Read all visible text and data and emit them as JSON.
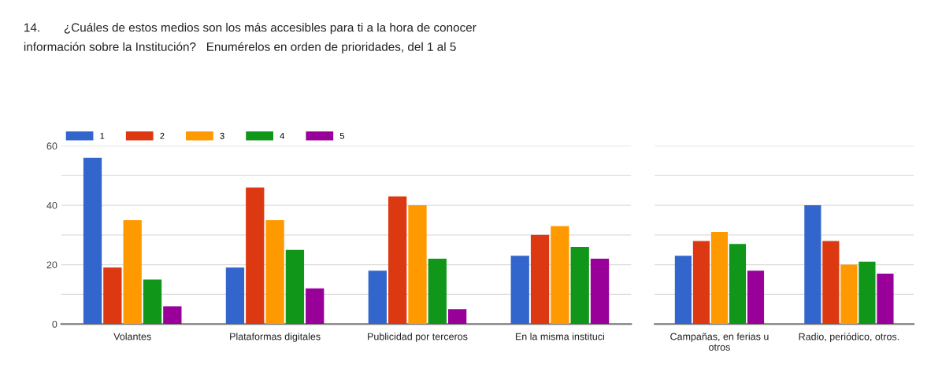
{
  "chart_data": [
    {
      "type": "bar",
      "title": "14.       ¿Cuáles de estos medios son los más accesibles para ti a la hora de conocer\ninformación sobre la Institución?   Enumérelos en orden de prioridades, del 1 al 5",
      "categories": [
        "Volantes",
        "Plataformas digitales",
        "Publicidad por terceros",
        "En la misma instituci"
      ],
      "series": [
        {
          "name": "1",
          "color": "#3366cc",
          "values": [
            56,
            19,
            18,
            23
          ]
        },
        {
          "name": "2",
          "color": "#dc3912",
          "values": [
            19,
            46,
            43,
            30
          ]
        },
        {
          "name": "3",
          "color": "#ff9900",
          "values": [
            35,
            35,
            40,
            33
          ]
        },
        {
          "name": "4",
          "color": "#109618",
          "values": [
            15,
            25,
            22,
            26
          ]
        },
        {
          "name": "5",
          "color": "#990099",
          "values": [
            6,
            12,
            5,
            22
          ]
        }
      ],
      "ylim": [
        0,
        60
      ],
      "yticks": [
        0,
        {
          "value": 10,
          "label": null
        },
        20,
        {
          "value": 30,
          "label": null
        },
        40,
        {
          "value": 50,
          "label": null
        },
        60
      ],
      "grid": "y",
      "legend": "top left"
    },
    {
      "type": "bar",
      "categories": [
        "Campañas, en ferias u\notros",
        "Radio, periódico, otros."
      ],
      "series": [
        {
          "color": "#3366cc",
          "values": [
            23,
            40
          ]
        },
        {
          "color": "#dc3912",
          "values": [
            28,
            28
          ]
        },
        {
          "color": "#ff9900",
          "values": [
            31,
            20
          ]
        },
        {
          "color": "#109618",
          "values": [
            27,
            21
          ]
        },
        {
          "color": "#990099",
          "values": [
            18,
            17
          ]
        }
      ],
      "ylim": [
        0,
        60
      ],
      "yticks": [
        0,
        {
          "value": 10,
          "label": null
        },
        20,
        {
          "value": 30,
          "label": null
        },
        40,
        {
          "value": 50,
          "label": null
        },
        60
      ],
      "grid": "y",
      "tick_labels": "x"
    }
  ]
}
